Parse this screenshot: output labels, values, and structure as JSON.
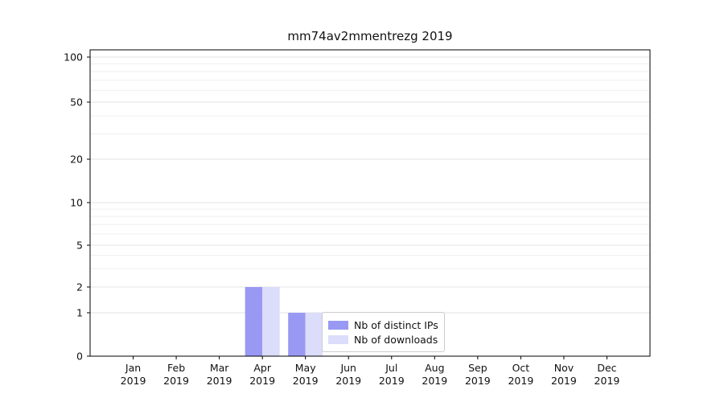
{
  "chart_data": {
    "type": "bar",
    "title": "mm74av2mmentrezg 2019",
    "categories": [
      "Jan",
      "Feb",
      "Mar",
      "Apr",
      "May",
      "Jun",
      "Jul",
      "Aug",
      "Sep",
      "Oct",
      "Nov",
      "Dec"
    ],
    "year_label": "2019",
    "series": [
      {
        "name": "Nb of distinct IPs",
        "color": "#9999f3",
        "values": [
          0,
          0,
          0,
          2,
          1,
          0,
          0,
          0,
          0,
          0,
          0,
          0
        ]
      },
      {
        "name": "Nb of downloads",
        "color": "#dcdcfb",
        "values": [
          0,
          0,
          0,
          2,
          1,
          0,
          0,
          0,
          0,
          0,
          0,
          0
        ]
      }
    ],
    "yticks": [
      0,
      1,
      2,
      5,
      10,
      20,
      50,
      100
    ],
    "minor_yticks": [
      3,
      4,
      6,
      7,
      8,
      9,
      30,
      40,
      60,
      70,
      80,
      90
    ],
    "ylim": [
      0,
      100
    ],
    "scale": "symlog",
    "grid": true,
    "legend_position": "inside-bottom-center",
    "colors": {
      "spine": "#000000",
      "grid_major": "#e3e3e3",
      "grid_minor": "#efefef"
    }
  }
}
